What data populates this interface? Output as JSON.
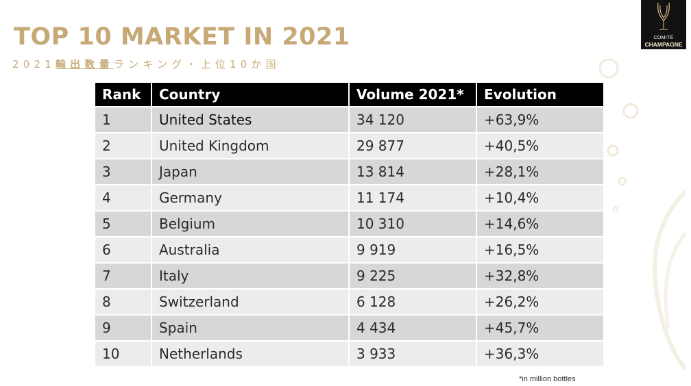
{
  "title": "TOP 10 MARKET IN 2021",
  "subtitle": {
    "prefix": "2021",
    "underlined": "輸出数量",
    "suffix": "ランキング・上位10か国"
  },
  "logo": {
    "line1": "COMITÉ",
    "line2": "CHAMPAGNE"
  },
  "table": {
    "headers": [
      "Rank",
      "Country",
      "Volume 2021*",
      "Evolution"
    ],
    "rows": [
      {
        "rank": "1",
        "country": "United States",
        "volume": "34 120",
        "evolution": "+63,9%"
      },
      {
        "rank": "2",
        "country": "United Kingdom",
        "volume": "29 877",
        "evolution": "+40,5%"
      },
      {
        "rank": "3",
        "country": "Japan",
        "volume": "13 814",
        "evolution": "+28,1%"
      },
      {
        "rank": "4",
        "country": "Germany",
        "volume": "11 174",
        "evolution": "+10,4%"
      },
      {
        "rank": "5",
        "country": "Belgium",
        "volume": "10 310",
        "evolution": "+14,6%"
      },
      {
        "rank": "6",
        "country": "Australia",
        "volume": "9 919",
        "evolution": "+16,5%"
      },
      {
        "rank": "7",
        "country": "Italy",
        "volume": "9 225",
        "evolution": "+32,8%"
      },
      {
        "rank": "8",
        "country": "Switzerland",
        "volume": "6 128",
        "evolution": "+26,2%"
      },
      {
        "rank": "9",
        "country": "Spain",
        "volume": "4 434",
        "evolution": "+45,7%"
      },
      {
        "rank": "10",
        "country": "Netherlands",
        "volume": "3 933",
        "evolution": "+36,3%"
      }
    ]
  },
  "footnote": "*in million bottles",
  "colors": {
    "title_gold": "#c6a977",
    "header_bg": "#000000",
    "row_dark": "#d7d7d7",
    "row_light": "#ececec"
  }
}
